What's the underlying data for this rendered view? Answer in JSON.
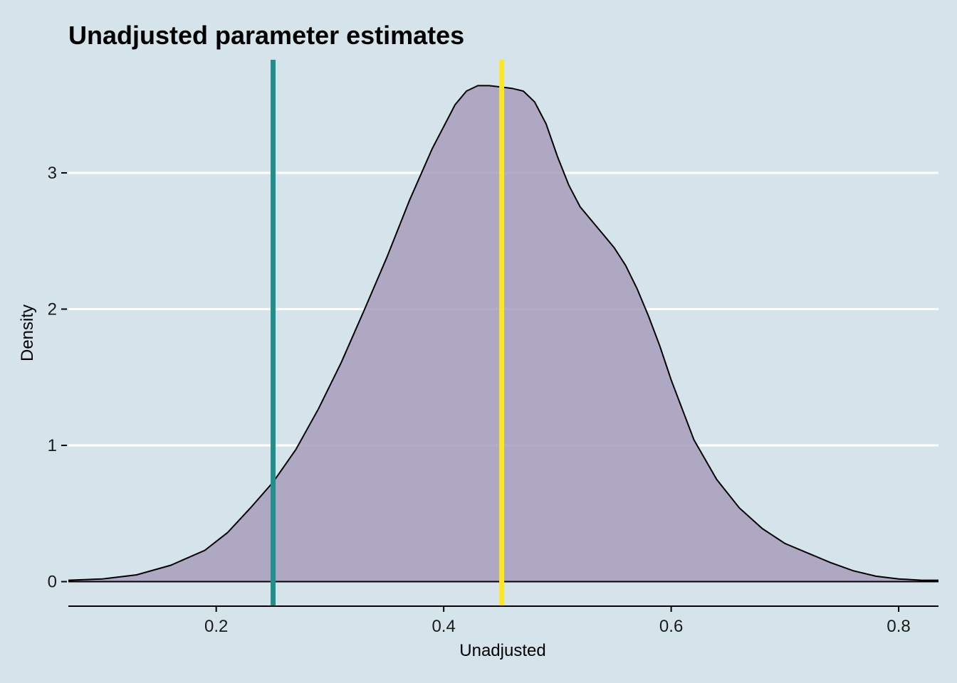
{
  "chart_data": {
    "type": "area",
    "title": "Unadjusted parameter estimates",
    "xlabel": "Unadjusted",
    "ylabel": "Density",
    "xlim": [
      0.07,
      0.835
    ],
    "ylim": [
      -0.18,
      3.83
    ],
    "x_ticks": [
      0.2,
      0.4,
      0.6,
      0.8
    ],
    "x_tick_labels": [
      "0.2",
      "0.4",
      "0.6",
      "0.8"
    ],
    "y_ticks": [
      0,
      1,
      2,
      3
    ],
    "y_tick_labels": [
      "0",
      "1",
      "2",
      "3"
    ],
    "grid": "horizontal",
    "fill_color": "#a89dbc",
    "outline_color": "#000000",
    "background_color": "#d5e4eb",
    "density": {
      "x": [
        0.07,
        0.1,
        0.13,
        0.16,
        0.19,
        0.21,
        0.23,
        0.25,
        0.27,
        0.29,
        0.31,
        0.33,
        0.35,
        0.37,
        0.39,
        0.41,
        0.42,
        0.43,
        0.44,
        0.45,
        0.46,
        0.47,
        0.48,
        0.49,
        0.5,
        0.51,
        0.52,
        0.53,
        0.54,
        0.55,
        0.56,
        0.57,
        0.58,
        0.59,
        0.6,
        0.62,
        0.64,
        0.66,
        0.68,
        0.7,
        0.72,
        0.74,
        0.76,
        0.78,
        0.8,
        0.82,
        0.835
      ],
      "y": [
        0.01,
        0.02,
        0.05,
        0.12,
        0.23,
        0.36,
        0.54,
        0.73,
        0.97,
        1.27,
        1.61,
        1.99,
        2.38,
        2.8,
        3.18,
        3.5,
        3.6,
        3.64,
        3.64,
        3.63,
        3.62,
        3.6,
        3.52,
        3.36,
        3.12,
        2.91,
        2.75,
        2.65,
        2.55,
        2.45,
        2.32,
        2.15,
        1.95,
        1.73,
        1.48,
        1.04,
        0.75,
        0.54,
        0.39,
        0.28,
        0.21,
        0.14,
        0.08,
        0.04,
        0.02,
        0.01,
        0.01
      ]
    },
    "vlines": [
      {
        "x": 0.25,
        "color": "#21908c"
      },
      {
        "x": 0.451,
        "color": "#fde725"
      }
    ]
  }
}
